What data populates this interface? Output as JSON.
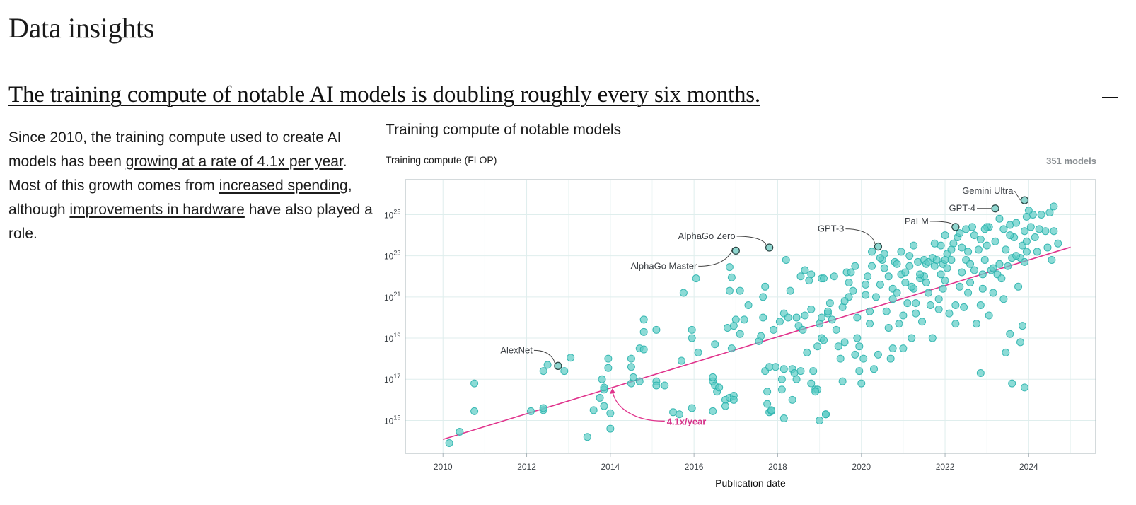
{
  "page": {
    "title": "Data insights",
    "headline": "The training compute of notable AI models is doubling roughly every six months.",
    "summary": {
      "t1": "Since 2010, the training compute used to create AI models has been ",
      "l1": "growing at a rate of 4.1x per year",
      "t2": ". Most of this growth comes from ",
      "l2": "increased spending",
      "t3": ", although ",
      "l3": "improvements in hardware",
      "t4": " have also played a role."
    },
    "collapse_icon": "minus-icon"
  },
  "chart_data": {
    "type": "scatter",
    "title": "Training compute of notable models",
    "ylabel": "Training compute (FLOP)",
    "xlabel": "Publication date",
    "model_count": "351 models",
    "log_y": true,
    "xlim": [
      2009.1,
      2025.6
    ],
    "ylim_log10": [
      13.4,
      26.7
    ],
    "x_ticks": [
      2010,
      2012,
      2014,
      2016,
      2018,
      2020,
      2022,
      2024
    ],
    "x_tick_labels": [
      "2010",
      "2012",
      "2014",
      "2016",
      "2018",
      "2020",
      "2022",
      "2024"
    ],
    "y_ticks_log10": [
      15,
      17,
      19,
      21,
      23,
      25
    ],
    "y_tick_base": "10",
    "y_tick_exponents": [
      "15",
      "17",
      "19",
      "21",
      "23",
      "25"
    ],
    "grid": true,
    "colors": {
      "points": "#2ab3ad",
      "point_fill": "#5fcdc6",
      "trend": "#e0338c",
      "grid": "#dfeeed",
      "frame": "#a9b4ba"
    },
    "trend": {
      "label": "4.1x/year",
      "from": [
        2010.0,
        14.08
      ],
      "to": [
        2025.0,
        23.42
      ]
    },
    "highlighted": [
      {
        "name": "AlexNet",
        "x": 2012.75,
        "y_log10": 17.65
      },
      {
        "name": "AlphaGo Master",
        "x": 2017.0,
        "y_log10": 23.25
      },
      {
        "name": "AlphaGo Zero",
        "x": 2017.8,
        "y_log10": 23.4
      },
      {
        "name": "GPT-3",
        "x": 2020.4,
        "y_log10": 23.45
      },
      {
        "name": "PaLM",
        "x": 2022.25,
        "y_log10": 24.4
      },
      {
        "name": "GPT-4",
        "x": 2023.2,
        "y_log10": 25.3
      },
      {
        "name": "Gemini Ultra",
        "x": 2023.9,
        "y_log10": 25.7
      }
    ],
    "points": [
      [
        2010.15,
        13.9
      ],
      [
        2010.4,
        14.45
      ],
      [
        2010.75,
        15.45
      ],
      [
        2010.75,
        16.8
      ],
      [
        2012.1,
        15.45
      ],
      [
        2012.4,
        15.5
      ],
      [
        2012.4,
        15.6
      ],
      [
        2012.4,
        17.4
      ],
      [
        2012.5,
        17.7
      ],
      [
        2012.9,
        17.4
      ],
      [
        2013.05,
        18.05
      ],
      [
        2013.45,
        14.2
      ],
      [
        2013.6,
        15.5
      ],
      [
        2013.75,
        16.1
      ],
      [
        2013.8,
        17.0
      ],
      [
        2013.85,
        16.5
      ],
      [
        2013.85,
        15.7
      ],
      [
        2013.95,
        17.55
      ],
      [
        2013.95,
        18.0
      ],
      [
        2014.0,
        15.35
      ],
      [
        2014.0,
        14.6
      ],
      [
        2014.5,
        17.6
      ],
      [
        2014.5,
        18.0
      ],
      [
        2014.5,
        16.8
      ],
      [
        2014.7,
        16.9
      ],
      [
        2014.7,
        18.5
      ],
      [
        2014.8,
        18.45
      ],
      [
        2014.8,
        19.3
      ],
      [
        2014.8,
        19.9
      ],
      [
        2015.1,
        16.9
      ],
      [
        2015.1,
        16.7
      ],
      [
        2015.1,
        19.4
      ],
      [
        2015.3,
        16.7
      ],
      [
        2015.5,
        15.4
      ],
      [
        2015.65,
        15.3
      ],
      [
        2015.75,
        21.2
      ],
      [
        2015.95,
        15.6
      ],
      [
        2015.95,
        19.0
      ],
      [
        2015.95,
        19.4
      ],
      [
        2016.05,
        21.9
      ],
      [
        2016.45,
        15.45
      ],
      [
        2016.45,
        16.9
      ],
      [
        2016.45,
        17.1
      ],
      [
        2016.5,
        16.7
      ],
      [
        2016.75,
        16.0
      ],
      [
        2016.75,
        15.7
      ],
      [
        2016.8,
        19.5
      ],
      [
        2016.85,
        21.3
      ],
      [
        2016.85,
        22.45
      ],
      [
        2016.85,
        16.1
      ],
      [
        2016.9,
        18.5
      ],
      [
        2016.9,
        21.95
      ],
      [
        2016.95,
        16.2
      ],
      [
        2016.95,
        16.0
      ],
      [
        2017.0,
        19.9
      ],
      [
        2017.1,
        21.3
      ],
      [
        2017.1,
        19.2
      ],
      [
        2017.55,
        18.85
      ],
      [
        2017.65,
        20.0
      ],
      [
        2017.65,
        21.0
      ],
      [
        2017.7,
        21.5
      ],
      [
        2017.7,
        17.4
      ],
      [
        2017.75,
        16.4
      ],
      [
        2017.75,
        15.8
      ],
      [
        2017.8,
        15.4
      ],
      [
        2017.8,
        17.6
      ],
      [
        2017.85,
        15.45
      ],
      [
        2017.85,
        15.5
      ],
      [
        2017.9,
        19.4
      ],
      [
        2017.95,
        17.6
      ],
      [
        2018.1,
        16.5
      ],
      [
        2018.1,
        17.0
      ],
      [
        2018.15,
        15.1
      ],
      [
        2018.15,
        17.5
      ],
      [
        2018.15,
        20.2
      ],
      [
        2018.2,
        22.8
      ],
      [
        2018.25,
        20.0
      ],
      [
        2018.3,
        21.3
      ],
      [
        2018.35,
        17.5
      ],
      [
        2018.35,
        16.0
      ],
      [
        2018.4,
        17.3
      ],
      [
        2018.45,
        17.0
      ],
      [
        2018.5,
        19.6
      ],
      [
        2018.55,
        17.4
      ],
      [
        2018.6,
        19.4
      ],
      [
        2018.65,
        22.3
      ],
      [
        2018.65,
        20.1
      ],
      [
        2018.7,
        18.3
      ],
      [
        2018.8,
        16.8
      ],
      [
        2018.8,
        22.1
      ],
      [
        2018.85,
        17.4
      ],
      [
        2018.9,
        16.5
      ],
      [
        2018.95,
        16.5
      ],
      [
        2018.95,
        18.6
      ],
      [
        2019.0,
        19.7
      ],
      [
        2019.0,
        15.0
      ],
      [
        2019.05,
        21.9
      ],
      [
        2019.05,
        20.0
      ],
      [
        2019.05,
        19.0
      ],
      [
        2019.1,
        18.9
      ],
      [
        2019.15,
        15.3
      ],
      [
        2019.15,
        15.3
      ],
      [
        2019.2,
        20.2
      ],
      [
        2019.3,
        19.9
      ],
      [
        2019.35,
        22.0
      ],
      [
        2019.4,
        19.4
      ],
      [
        2019.45,
        18.6
      ],
      [
        2019.5,
        18.0
      ],
      [
        2019.55,
        20.5
      ],
      [
        2019.6,
        18.8
      ],
      [
        2019.65,
        22.2
      ],
      [
        2019.7,
        21.7
      ],
      [
        2019.75,
        22.2
      ],
      [
        2019.8,
        21.3
      ],
      [
        2019.85,
        18.2
      ],
      [
        2019.9,
        19.0
      ],
      [
        2019.9,
        20.0
      ],
      [
        2019.95,
        17.4
      ],
      [
        2019.95,
        18.6
      ],
      [
        2020.0,
        16.8
      ],
      [
        2020.05,
        18.0
      ],
      [
        2020.1,
        21.1
      ],
      [
        2020.15,
        22.0
      ],
      [
        2020.2,
        19.7
      ],
      [
        2020.25,
        22.5
      ],
      [
        2020.3,
        17.5
      ],
      [
        2020.35,
        21.0
      ],
      [
        2020.4,
        18.2
      ],
      [
        2020.45,
        21.6
      ],
      [
        2020.5,
        22.8
      ],
      [
        2020.55,
        23.1
      ],
      [
        2020.6,
        20.3
      ],
      [
        2020.65,
        19.5
      ],
      [
        2020.7,
        18.0
      ],
      [
        2020.75,
        21.4
      ],
      [
        2020.75,
        18.5
      ],
      [
        2020.8,
        22.7
      ],
      [
        2020.85,
        21.2
      ],
      [
        2020.9,
        19.7
      ],
      [
        2020.95,
        22.1
      ],
      [
        2021.0,
        20.1
      ],
      [
        2021.0,
        18.5
      ],
      [
        2021.05,
        21.7
      ],
      [
        2021.1,
        20.7
      ],
      [
        2021.15,
        22.5
      ],
      [
        2021.2,
        19.0
      ],
      [
        2021.25,
        21.4
      ],
      [
        2021.3,
        20.2
      ],
      [
        2021.35,
        22.7
      ],
      [
        2021.4,
        21.9
      ],
      [
        2021.45,
        19.8
      ],
      [
        2021.5,
        22.8
      ],
      [
        2021.55,
        22.6
      ],
      [
        2021.6,
        21.2
      ],
      [
        2021.65,
        20.6
      ],
      [
        2021.7,
        22.9
      ],
      [
        2021.7,
        19.0
      ],
      [
        2021.75,
        22.5
      ],
      [
        2021.8,
        22.8
      ],
      [
        2021.85,
        20.4
      ],
      [
        2021.9,
        22.1
      ],
      [
        2021.95,
        22.6
      ],
      [
        2022.0,
        21.8
      ],
      [
        2022.05,
        23.1
      ],
      [
        2022.1,
        20.2
      ],
      [
        2022.15,
        22.8
      ],
      [
        2022.2,
        23.6
      ],
      [
        2022.25,
        19.7
      ],
      [
        2022.3,
        23.9
      ],
      [
        2022.35,
        21.5
      ],
      [
        2022.4,
        23.4
      ],
      [
        2022.45,
        20.5
      ],
      [
        2022.5,
        22.8
      ],
      [
        2022.55,
        23.2
      ],
      [
        2022.6,
        21.7
      ],
      [
        2022.65,
        24.4
      ],
      [
        2022.7,
        22.3
      ],
      [
        2022.75,
        19.7
      ],
      [
        2022.8,
        23.3
      ],
      [
        2022.85,
        20.6
      ],
      [
        2022.9,
        21.4
      ],
      [
        2022.95,
        22.8
      ],
      [
        2023.0,
        23.5
      ],
      [
        2023.05,
        20.1
      ],
      [
        2023.1,
        22.3
      ],
      [
        2023.15,
        21.2
      ],
      [
        2023.2,
        23.7
      ],
      [
        2023.25,
        22.1
      ],
      [
        2023.3,
        24.8
      ],
      [
        2023.35,
        21.9
      ],
      [
        2023.4,
        20.9
      ],
      [
        2023.45,
        23.3
      ],
      [
        2023.5,
        22.5
      ],
      [
        2023.55,
        19.2
      ],
      [
        2023.55,
        24.5
      ],
      [
        2023.6,
        22.9
      ],
      [
        2023.65,
        23.9
      ],
      [
        2023.7,
        24.6
      ],
      [
        2023.75,
        21.5
      ],
      [
        2023.8,
        22.9
      ],
      [
        2023.85,
        23.5
      ],
      [
        2023.9,
        22.7
      ],
      [
        2023.9,
        24.2
      ],
      [
        2023.95,
        23.2
      ],
      [
        2024.05,
        24.4
      ],
      [
        2024.1,
        25.0
      ],
      [
        2024.2,
        23.2
      ],
      [
        2024.3,
        25.0
      ],
      [
        2024.4,
        24.2
      ],
      [
        2024.5,
        25.1
      ],
      [
        2024.6,
        25.4
      ],
      [
        2024.7,
        23.6
      ],
      [
        2023.9,
        16.6
      ],
      [
        2023.85,
        19.6
      ],
      [
        2023.6,
        16.8
      ],
      [
        2022.85,
        17.3
      ],
      [
        2022.5,
        24.3
      ],
      [
        2021.9,
        23.5
      ],
      [
        2021.3,
        20.7
      ],
      [
        2020.2,
        20.3
      ],
      [
        2019.55,
        16.9
      ],
      [
        2018.9,
        16.4
      ],
      [
        2023.45,
        18.3
      ],
      [
        2023.8,
        18.8
      ],
      [
        2024.0,
        25.2
      ],
      [
        2024.45,
        23.4
      ],
      [
        2022.7,
        24.0
      ],
      [
        2021.15,
        23.0
      ],
      [
        2020.95,
        23.2
      ],
      [
        2021.6,
        22.7
      ],
      [
        2022.05,
        22.4
      ],
      [
        2023.05,
        24.4
      ],
      [
        2022.0,
        24.0
      ],
      [
        2021.75,
        23.6
      ],
      [
        2020.55,
        22.4
      ],
      [
        2019.85,
        22.5
      ],
      [
        2020.25,
        23.2
      ],
      [
        2021.25,
        23.5
      ],
      [
        2022.35,
        24.1
      ],
      [
        2023.4,
        24.3
      ],
      [
        2023.0,
        24.4
      ],
      [
        2022.95,
        24.3
      ],
      [
        2021.5,
        22.0
      ],
      [
        2020.85,
        22.6
      ],
      [
        2022.55,
        21.2
      ],
      [
        2022.25,
        20.6
      ],
      [
        2022.0,
        22.8
      ],
      [
        2021.85,
        20.9
      ],
      [
        2021.2,
        21.5
      ],
      [
        2020.45,
        22.9
      ],
      [
        2019.7,
        21.0
      ],
      [
        2019.25,
        20.7
      ],
      [
        2019.1,
        21.9
      ],
      [
        2018.75,
        21.8
      ],
      [
        2018.55,
        22.0
      ],
      [
        2017.3,
        20.6
      ],
      [
        2017.2,
        19.9
      ],
      [
        2016.55,
        16.4
      ],
      [
        2016.6,
        16.6
      ],
      [
        2024.25,
        24.3
      ],
      [
        2024.15,
        23.9
      ],
      [
        2023.95,
        23.7
      ],
      [
        2023.7,
        23.0
      ],
      [
        2023.3,
        22.6
      ],
      [
        2023.15,
        22.4
      ],
      [
        2022.9,
        22.1
      ],
      [
        2022.6,
        22.6
      ],
      [
        2022.4,
        22.2
      ],
      [
        2021.95,
        21.4
      ],
      [
        2021.55,
        21.7
      ],
      [
        2021.05,
        22.2
      ],
      [
        2020.65,
        22.0
      ],
      [
        2020.1,
        21.6
      ],
      [
        2019.6,
        20.8
      ],
      [
        2019.2,
        20.3
      ],
      [
        2018.8,
        20.4
      ],
      [
        2018.45,
        20.0
      ],
      [
        2018.05,
        19.8
      ],
      [
        2017.6,
        19.1
      ],
      [
        2016.95,
        19.6
      ],
      [
        2016.5,
        18.7
      ],
      [
        2016.1,
        18.3
      ],
      [
        2015.7,
        17.9
      ],
      [
        2013.85,
        16.6
      ],
      [
        2014.55,
        17.1
      ],
      [
        2020.75,
        20.9
      ],
      [
        2021.4,
        22.1
      ],
      [
        2022.15,
        23.3
      ],
      [
        2022.85,
        23.8
      ],
      [
        2023.55,
        24.0
      ],
      [
        2023.95,
        24.9
      ],
      [
        2024.6,
        24.2
      ],
      [
        2024.55,
        22.8
      ]
    ]
  }
}
